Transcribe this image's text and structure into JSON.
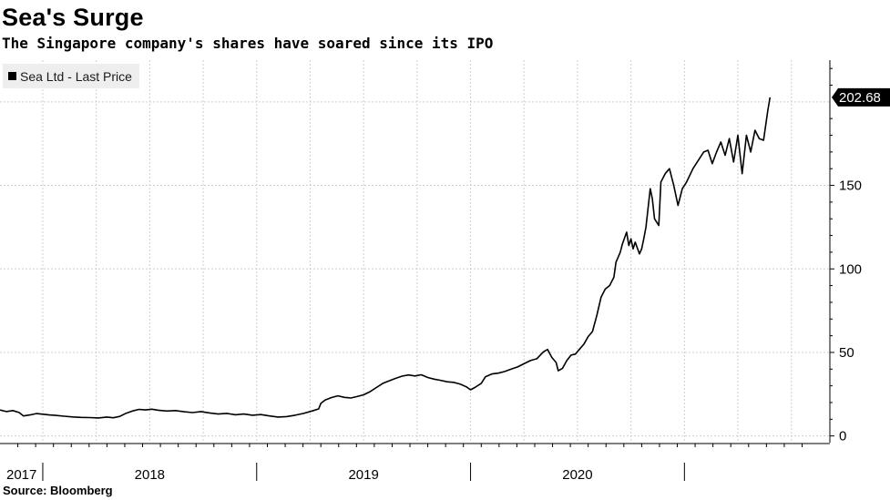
{
  "header": {
    "title": "Sea's Surge",
    "subtitle": "The Singapore company's shares have soared since its IPO"
  },
  "footer": {
    "source": "Source: Bloomberg"
  },
  "chart_data": {
    "type": "line",
    "title": "Sea's Surge",
    "subtitle": "The Singapore company's shares have soared since its IPO",
    "xlabel": "",
    "ylabel": "",
    "x_unit": "year (decimal)",
    "xlim": [
      2017.0,
      2020.88
    ],
    "ylim": [
      -4,
      225
    ],
    "grid": true,
    "legend_position": "top-left",
    "y_ticks": [
      0,
      50,
      100,
      150
    ],
    "y_tick_labels": [
      "0",
      "50",
      "100",
      "150"
    ],
    "x_tick_labels": [
      {
        "label": "2017",
        "x": 2017.02
      },
      {
        "label": "2018",
        "x": 2017.7
      },
      {
        "label": "2019",
        "x": 2018.7
      },
      {
        "label": "2020",
        "x": 2019.7
      }
    ],
    "x_separators": [
      2017.2,
      2018.2,
      2019.2,
      2020.2
    ],
    "last_value": {
      "value": 202.68,
      "label": "202.68"
    },
    "series": [
      {
        "name": "Sea Ltd - Last Price",
        "color": "#000000",
        "points": [
          [
            2017.0,
            15.5
          ],
          [
            2017.03,
            14.6
          ],
          [
            2017.06,
            15.2
          ],
          [
            2017.09,
            14.0
          ],
          [
            2017.11,
            12.0
          ],
          [
            2017.14,
            12.6
          ],
          [
            2017.17,
            13.4
          ],
          [
            2017.2,
            13.0
          ],
          [
            2017.23,
            12.6
          ],
          [
            2017.26,
            12.3
          ],
          [
            2017.3,
            11.8
          ],
          [
            2017.34,
            11.4
          ],
          [
            2017.38,
            11.1
          ],
          [
            2017.42,
            11.0
          ],
          [
            2017.46,
            10.8
          ],
          [
            2017.5,
            11.3
          ],
          [
            2017.53,
            10.9
          ],
          [
            2017.56,
            11.7
          ],
          [
            2017.59,
            13.6
          ],
          [
            2017.62,
            15.0
          ],
          [
            2017.65,
            15.9
          ],
          [
            2017.68,
            15.6
          ],
          [
            2017.71,
            16.0
          ],
          [
            2017.74,
            15.4
          ],
          [
            2017.78,
            14.9
          ],
          [
            2017.82,
            15.2
          ],
          [
            2017.86,
            14.5
          ],
          [
            2017.9,
            14.0
          ],
          [
            2017.94,
            14.6
          ],
          [
            2017.98,
            13.8
          ],
          [
            2018.02,
            13.1
          ],
          [
            2018.06,
            13.5
          ],
          [
            2018.1,
            12.7
          ],
          [
            2018.14,
            13.1
          ],
          [
            2018.18,
            12.4
          ],
          [
            2018.22,
            12.8
          ],
          [
            2018.26,
            12.0
          ],
          [
            2018.3,
            11.3
          ],
          [
            2018.34,
            11.6
          ],
          [
            2018.38,
            12.4
          ],
          [
            2018.42,
            13.5
          ],
          [
            2018.46,
            15.0
          ],
          [
            2018.49,
            16.2
          ],
          [
            2018.5,
            19.5
          ],
          [
            2018.52,
            21.5
          ],
          [
            2018.55,
            23.0
          ],
          [
            2018.58,
            24.0
          ],
          [
            2018.61,
            23.1
          ],
          [
            2018.64,
            22.7
          ],
          [
            2018.67,
            23.6
          ],
          [
            2018.7,
            24.6
          ],
          [
            2018.73,
            26.5
          ],
          [
            2018.76,
            29.0
          ],
          [
            2018.79,
            31.5
          ],
          [
            2018.82,
            33.0
          ],
          [
            2018.85,
            34.5
          ],
          [
            2018.88,
            35.8
          ],
          [
            2018.91,
            36.5
          ],
          [
            2018.94,
            35.9
          ],
          [
            2018.97,
            36.6
          ],
          [
            2019.0,
            35.0
          ],
          [
            2019.03,
            34.0
          ],
          [
            2019.06,
            33.3
          ],
          [
            2019.09,
            32.4
          ],
          [
            2019.12,
            32.1
          ],
          [
            2019.15,
            31.1
          ],
          [
            2019.18,
            29.4
          ],
          [
            2019.2,
            27.6
          ],
          [
            2019.22,
            29.0
          ],
          [
            2019.25,
            31.5
          ],
          [
            2019.27,
            35.5
          ],
          [
            2019.3,
            37.1
          ],
          [
            2019.33,
            37.6
          ],
          [
            2019.36,
            38.6
          ],
          [
            2019.39,
            40.0
          ],
          [
            2019.42,
            41.3
          ],
          [
            2019.45,
            43.2
          ],
          [
            2019.48,
            45.1
          ],
          [
            2019.51,
            46.2
          ],
          [
            2019.54,
            50.3
          ],
          [
            2019.56,
            51.8
          ],
          [
            2019.58,
            47.0
          ],
          [
            2019.6,
            44.0
          ],
          [
            2019.61,
            39.0
          ],
          [
            2019.63,
            40.5
          ],
          [
            2019.65,
            45.1
          ],
          [
            2019.67,
            48.4
          ],
          [
            2019.69,
            49.0
          ],
          [
            2019.71,
            52.0
          ],
          [
            2019.73,
            55.0
          ],
          [
            2019.75,
            59.5
          ],
          [
            2019.77,
            62.5
          ],
          [
            2019.79,
            72.0
          ],
          [
            2019.81,
            83.0
          ],
          [
            2019.83,
            88.0
          ],
          [
            2019.85,
            90.0
          ],
          [
            2019.87,
            95.0
          ],
          [
            2019.88,
            104.0
          ],
          [
            2019.9,
            110.0
          ],
          [
            2019.91,
            115.0
          ],
          [
            2019.93,
            122.0
          ],
          [
            2019.94,
            114.0
          ],
          [
            2019.95,
            118.0
          ],
          [
            2019.96,
            112.0
          ],
          [
            2019.97,
            116.0
          ],
          [
            2019.99,
            109.0
          ],
          [
            2020.0,
            112.0
          ],
          [
            2020.01,
            118.0
          ],
          [
            2020.02,
            125.0
          ],
          [
            2020.04,
            148.0
          ],
          [
            2020.05,
            142.0
          ],
          [
            2020.06,
            130.0
          ],
          [
            2020.08,
            126.0
          ],
          [
            2020.09,
            152.0
          ],
          [
            2020.11,
            157.0
          ],
          [
            2020.13,
            160.0
          ],
          [
            2020.15,
            150.0
          ],
          [
            2020.17,
            138.0
          ],
          [
            2020.19,
            148.0
          ],
          [
            2020.21,
            152.0
          ],
          [
            2020.24,
            160.0
          ],
          [
            2020.27,
            166.0
          ],
          [
            2020.29,
            170.0
          ],
          [
            2020.31,
            171.0
          ],
          [
            2020.33,
            163.0
          ],
          [
            2020.35,
            170.0
          ],
          [
            2020.37,
            176.0
          ],
          [
            2020.39,
            168.0
          ],
          [
            2020.41,
            178.0
          ],
          [
            2020.43,
            164.0
          ],
          [
            2020.45,
            180.0
          ],
          [
            2020.47,
            157.0
          ],
          [
            2020.49,
            180.0
          ],
          [
            2020.51,
            170.0
          ],
          [
            2020.53,
            183.0
          ],
          [
            2020.55,
            178.0
          ],
          [
            2020.57,
            177.0
          ],
          [
            2020.59,
            195.0
          ],
          [
            2020.6,
            202.68
          ]
        ]
      }
    ]
  }
}
